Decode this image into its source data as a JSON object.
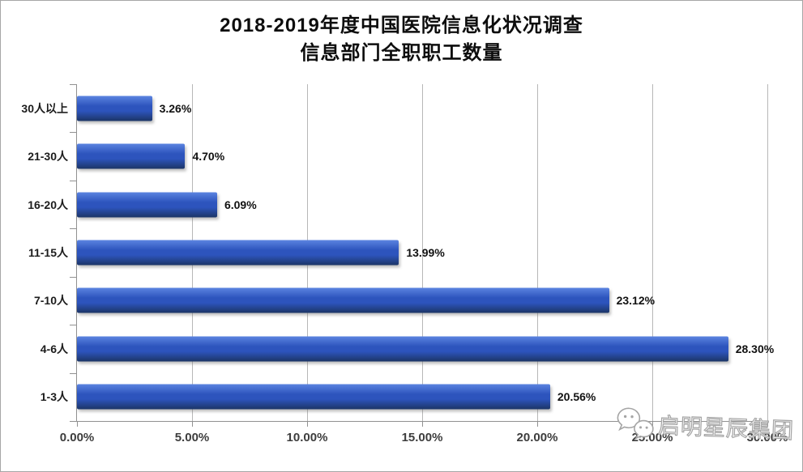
{
  "title": {
    "line1": "2018-2019年度中国医院信息化状况调查",
    "line2": "信息部门全职职工数量"
  },
  "chart_data": {
    "type": "bar",
    "orientation": "horizontal",
    "title": "2018-2019年度中国医院信息化状况调查 信息部门全职职工数量",
    "categories": [
      "30人以上",
      "21-30人",
      "16-20人",
      "11-15人",
      "7-10人",
      "4-6人",
      "1-3人"
    ],
    "values": [
      3.26,
      4.7,
      6.09,
      13.99,
      23.12,
      28.3,
      20.56
    ],
    "value_labels": [
      "3.26%",
      "4.70%",
      "6.09%",
      "13.99%",
      "23.12%",
      "28.30%",
      "20.56%"
    ],
    "xlabel": "",
    "ylabel": "",
    "xlim": [
      0,
      30
    ],
    "x_ticks": [
      0,
      5,
      10,
      15,
      20,
      25,
      30
    ],
    "x_tick_labels": [
      "0.00%",
      "5.00%",
      "10.00%",
      "15.00%",
      "20.00%",
      "25.00%",
      "30.00%"
    ],
    "grid": true,
    "legend": false,
    "bar_color_top": "#5b84e0",
    "bar_color_mid": "#2d54bd",
    "bar_color_bottom": "#1c3566",
    "gridline_color": "#b7b7b7",
    "axis_color": "#919191"
  },
  "watermark": {
    "text": "启明星辰集团",
    "icon": "wechat-icon",
    "text_color": "#ffffff",
    "outline_color": "#a5a5a5"
  }
}
